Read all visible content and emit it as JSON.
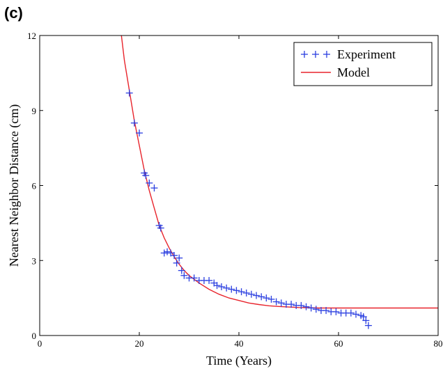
{
  "panel_label": "(c)",
  "chart_data": {
    "type": "scatter",
    "xlabel": "Time (Years)",
    "ylabel": "Nearest Neighbor Distance (cm)",
    "xlim": [
      0,
      80
    ],
    "ylim": [
      0,
      12
    ],
    "xticks": [
      0,
      20,
      40,
      60,
      80
    ],
    "yticks": [
      0,
      3,
      6,
      9,
      12
    ],
    "grid": false,
    "legend_position": "top-right",
    "colors": {
      "experiment": "#2b3fe0",
      "model": "#e8232b"
    },
    "series": [
      {
        "name": "Experiment",
        "type": "scatter",
        "marker": "+",
        "x": [
          18,
          19,
          20,
          21,
          21.3,
          22,
          23,
          24,
          24.3,
          25,
          25.6,
          26.3,
          27,
          27.5,
          28,
          28.5,
          29,
          30,
          31,
          32,
          33,
          34,
          35,
          35.6,
          36.5,
          37.5,
          38.5,
          39.5,
          40.5,
          41.5,
          42.5,
          43.5,
          44.5,
          45.5,
          46.5,
          47.5,
          48.5,
          49.5,
          50.5,
          51.5,
          52.5,
          53.5,
          54.5,
          55.5,
          56.5,
          57.5,
          58.5,
          59.5,
          60.5,
          61.5,
          62.5,
          63.5,
          64.5,
          65,
          65.5,
          66
        ],
        "y": [
          9.7,
          8.5,
          8.1,
          6.5,
          6.4,
          6.1,
          5.9,
          4.4,
          4.3,
          3.3,
          3.35,
          3.3,
          3.2,
          2.9,
          3.1,
          2.6,
          2.4,
          2.3,
          2.3,
          2.2,
          2.2,
          2.2,
          2.1,
          2.0,
          1.95,
          1.9,
          1.85,
          1.8,
          1.75,
          1.7,
          1.65,
          1.6,
          1.55,
          1.5,
          1.45,
          1.35,
          1.3,
          1.25,
          1.25,
          1.2,
          1.2,
          1.15,
          1.1,
          1.05,
          1.0,
          1.0,
          0.95,
          0.95,
          0.9,
          0.9,
          0.9,
          0.85,
          0.8,
          0.75,
          0.6,
          0.4
        ]
      },
      {
        "name": "Model",
        "type": "line",
        "x": [
          16.4,
          17,
          18,
          19,
          20,
          21,
          22,
          23,
          24,
          25,
          26,
          27,
          28,
          29,
          30,
          32,
          34,
          36,
          38,
          40,
          42,
          44,
          46,
          48,
          50,
          52,
          54,
          56,
          58,
          60,
          65,
          70,
          75,
          80
        ],
        "y": [
          12.0,
          11.0,
          9.8,
          8.6,
          7.6,
          6.6,
          5.8,
          5.1,
          4.4,
          3.9,
          3.5,
          3.15,
          2.85,
          2.6,
          2.4,
          2.1,
          1.85,
          1.65,
          1.5,
          1.4,
          1.3,
          1.24,
          1.19,
          1.16,
          1.14,
          1.12,
          1.11,
          1.1,
          1.1,
          1.1,
          1.1,
          1.1,
          1.1,
          1.1
        ]
      }
    ]
  }
}
